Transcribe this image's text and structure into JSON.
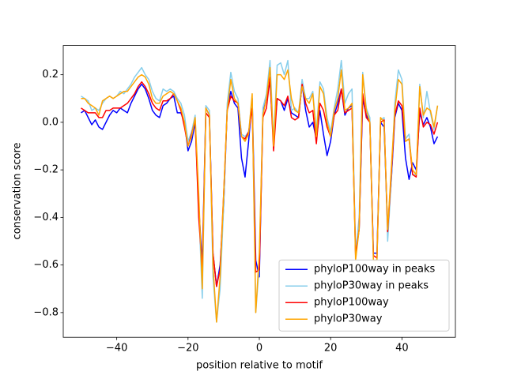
{
  "chart_data": {
    "type": "line",
    "xlabel": "position relative to motif",
    "ylabel": "conservation score",
    "x": [
      -50,
      -49,
      -48,
      -47,
      -46,
      -45,
      -44,
      -43,
      -42,
      -41,
      -40,
      -39,
      -38,
      -37,
      -36,
      -35,
      -34,
      -33,
      -32,
      -31,
      -30,
      -29,
      -28,
      -27,
      -26,
      -25,
      -24,
      -23,
      -22,
      -21,
      -20,
      -19,
      -18,
      -17,
      -16,
      -15,
      -14,
      -13,
      -12,
      -11,
      -10,
      -9,
      -8,
      -7,
      -6,
      -5,
      -4,
      -3,
      -2,
      -1,
      0,
      1,
      2,
      3,
      4,
      5,
      6,
      7,
      8,
      9,
      10,
      11,
      12,
      13,
      14,
      15,
      16,
      17,
      18,
      19,
      20,
      21,
      22,
      23,
      24,
      25,
      26,
      27,
      28,
      29,
      30,
      31,
      32,
      33,
      34,
      35,
      36,
      37,
      38,
      39,
      40,
      41,
      42,
      43,
      44,
      45,
      46,
      47,
      48,
      49,
      50
    ],
    "series": [
      {
        "name": "phyloP100way in peaks",
        "color": "#0000ff",
        "values": [
          0.04,
          0.05,
          0.02,
          -0.01,
          0.01,
          -0.02,
          -0.03,
          0.0,
          0.03,
          0.05,
          0.04,
          0.06,
          0.05,
          0.04,
          0.08,
          0.11,
          0.14,
          0.16,
          0.14,
          0.1,
          0.05,
          0.03,
          0.02,
          0.07,
          0.08,
          0.1,
          0.11,
          0.04,
          0.04,
          0.0,
          -0.12,
          -0.08,
          0.0,
          -0.35,
          -0.6,
          0.06,
          0.03,
          -0.55,
          -0.69,
          -0.6,
          -0.35,
          0.06,
          0.13,
          0.08,
          0.06,
          -0.15,
          -0.23,
          -0.08,
          0.1,
          -0.58,
          -0.65,
          0.04,
          0.1,
          0.17,
          -0.08,
          0.1,
          0.09,
          0.05,
          0.1,
          0.04,
          0.03,
          0.02,
          0.16,
          0.05,
          -0.02,
          0.0,
          -0.07,
          0.05,
          -0.05,
          -0.14,
          -0.08,
          0.03,
          0.08,
          0.14,
          0.03,
          0.06,
          0.07,
          -0.55,
          -0.45,
          0.1,
          0.03,
          0.0,
          -0.55,
          -0.55,
          0.0,
          -0.02,
          -0.45,
          -0.25,
          0.02,
          0.08,
          0.05,
          -0.15,
          -0.24,
          -0.17,
          -0.2,
          0.04,
          -0.01,
          0.02,
          -0.02,
          -0.09,
          -0.06
        ]
      },
      {
        "name": "phyloP30way in peaks",
        "color": "#87ceeb",
        "values": [
          0.11,
          0.1,
          0.09,
          0.05,
          0.06,
          0.05,
          0.08,
          0.1,
          0.11,
          0.1,
          0.11,
          0.13,
          0.12,
          0.14,
          0.16,
          0.19,
          0.21,
          0.23,
          0.2,
          0.18,
          0.13,
          0.1,
          0.09,
          0.14,
          0.13,
          0.14,
          0.13,
          0.1,
          0.08,
          0.03,
          -0.08,
          -0.04,
          0.03,
          -0.35,
          -0.74,
          0.07,
          0.05,
          -0.65,
          -0.84,
          -0.7,
          -0.35,
          0.08,
          0.21,
          0.13,
          0.1,
          -0.05,
          -0.06,
          -0.04,
          0.1,
          -0.8,
          -0.6,
          0.06,
          0.12,
          0.26,
          -0.08,
          0.24,
          0.25,
          0.2,
          0.26,
          0.05,
          0.06,
          0.04,
          0.18,
          0.1,
          0.1,
          0.13,
          -0.04,
          0.17,
          0.14,
          0.02,
          -0.04,
          0.06,
          0.14,
          0.26,
          0.08,
          0.12,
          0.14,
          -0.55,
          -0.4,
          0.21,
          0.06,
          0.02,
          -0.58,
          -0.58,
          0.01,
          0.02,
          -0.5,
          -0.25,
          0.08,
          0.22,
          0.18,
          -0.07,
          -0.05,
          -0.22,
          -0.22,
          0.16,
          0.02,
          0.13,
          0.04,
          -0.03,
          0.07
        ]
      },
      {
        "name": "phyloP100way",
        "color": "#ff0000",
        "values": [
          0.06,
          0.05,
          0.04,
          0.04,
          0.04,
          0.02,
          0.02,
          0.05,
          0.05,
          0.06,
          0.06,
          0.06,
          0.07,
          0.08,
          0.1,
          0.12,
          0.15,
          0.17,
          0.15,
          0.12,
          0.08,
          0.06,
          0.05,
          0.09,
          0.09,
          0.1,
          0.12,
          0.09,
          0.05,
          -0.02,
          -0.1,
          -0.05,
          0.01,
          -0.4,
          -0.62,
          0.04,
          0.02,
          -0.55,
          -0.69,
          -0.62,
          -0.3,
          0.05,
          0.11,
          0.09,
          0.08,
          -0.06,
          -0.07,
          -0.04,
          0.06,
          -0.63,
          -0.62,
          0.02,
          0.06,
          0.19,
          -0.12,
          0.1,
          0.09,
          0.07,
          0.11,
          0.02,
          0.01,
          0.02,
          0.16,
          0.08,
          0.04,
          0.05,
          -0.09,
          0.08,
          0.05,
          -0.02,
          -0.06,
          0.03,
          0.05,
          0.14,
          0.04,
          0.05,
          0.06,
          -0.56,
          -0.45,
          0.12,
          0.02,
          0.0,
          -0.56,
          -0.57,
          0.0,
          0.01,
          -0.46,
          -0.22,
          0.03,
          0.09,
          0.07,
          -0.08,
          -0.07,
          -0.22,
          -0.23,
          0.06,
          -0.02,
          0.0,
          -0.01,
          -0.05,
          0.0
        ]
      },
      {
        "name": "phyloP30way",
        "color": "#ffa500",
        "values": [
          0.1,
          0.1,
          0.08,
          0.07,
          0.06,
          0.03,
          0.09,
          0.1,
          0.11,
          0.1,
          0.11,
          0.12,
          0.13,
          0.13,
          0.15,
          0.17,
          0.19,
          0.2,
          0.19,
          0.16,
          0.1,
          0.08,
          0.08,
          0.11,
          0.12,
          0.13,
          0.12,
          0.09,
          0.06,
          0.0,
          -0.1,
          -0.06,
          0.02,
          -0.3,
          -0.7,
          0.06,
          0.03,
          -0.6,
          -0.84,
          -0.65,
          -0.3,
          0.05,
          0.18,
          0.1,
          0.08,
          -0.06,
          -0.08,
          -0.05,
          0.12,
          -0.8,
          -0.55,
          0.03,
          0.1,
          0.23,
          -0.1,
          0.2,
          0.2,
          0.18,
          0.22,
          0.1,
          0.05,
          0.04,
          0.15,
          0.1,
          0.08,
          0.12,
          -0.06,
          0.15,
          0.12,
          0.0,
          -0.06,
          0.05,
          0.1,
          0.22,
          0.05,
          0.06,
          0.08,
          -0.58,
          -0.45,
          0.2,
          0.05,
          0.0,
          -0.58,
          -0.58,
          0.02,
          0.0,
          -0.45,
          -0.2,
          0.05,
          0.18,
          0.16,
          -0.08,
          -0.07,
          -0.2,
          -0.22,
          0.15,
          0.03,
          0.06,
          0.05,
          -0.02,
          0.07
        ]
      }
    ],
    "xlim": [
      -55,
      55
    ],
    "xticks": [
      {
        "value": -40,
        "label": "−40"
      },
      {
        "value": -20,
        "label": "−20"
      },
      0,
      20,
      40
    ],
    "ylim": [
      -0.904,
      0.323
    ],
    "yticks": [
      {
        "value": -0.8,
        "label": "−0.8"
      },
      {
        "value": -0.6,
        "label": "−0.6"
      },
      {
        "value": -0.4,
        "label": "−0.4"
      },
      {
        "value": -0.2,
        "label": "−0.2"
      },
      {
        "value": 0,
        "label": "0.0"
      },
      0.2
    ],
    "legend": "lower right"
  }
}
